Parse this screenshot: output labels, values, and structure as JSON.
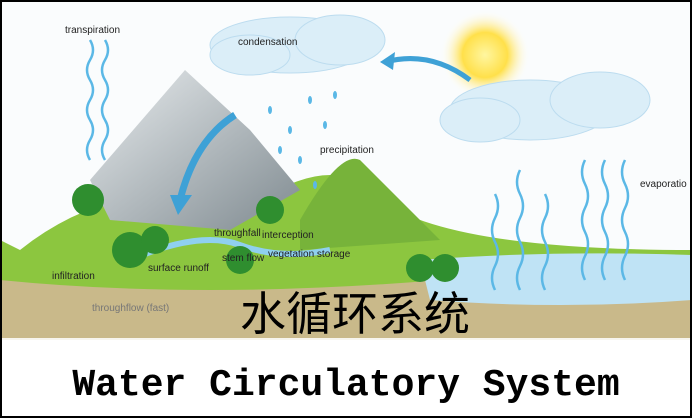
{
  "labels": {
    "transpiration": "transpiration",
    "condensation": "condensation",
    "precipitation": "precipitation",
    "evaporation": "evaporatio",
    "throughfall": "throughfall",
    "interception": "interception",
    "stem_flow": "stem flow",
    "vegetation_storage": "vegetation storage",
    "surface_runoff": "surface runoff",
    "infiltration": "infiltration",
    "throughflow": "throughflow (fast)"
  },
  "title_cn": "水循环系统",
  "title_en": "Water Circulatory System"
}
